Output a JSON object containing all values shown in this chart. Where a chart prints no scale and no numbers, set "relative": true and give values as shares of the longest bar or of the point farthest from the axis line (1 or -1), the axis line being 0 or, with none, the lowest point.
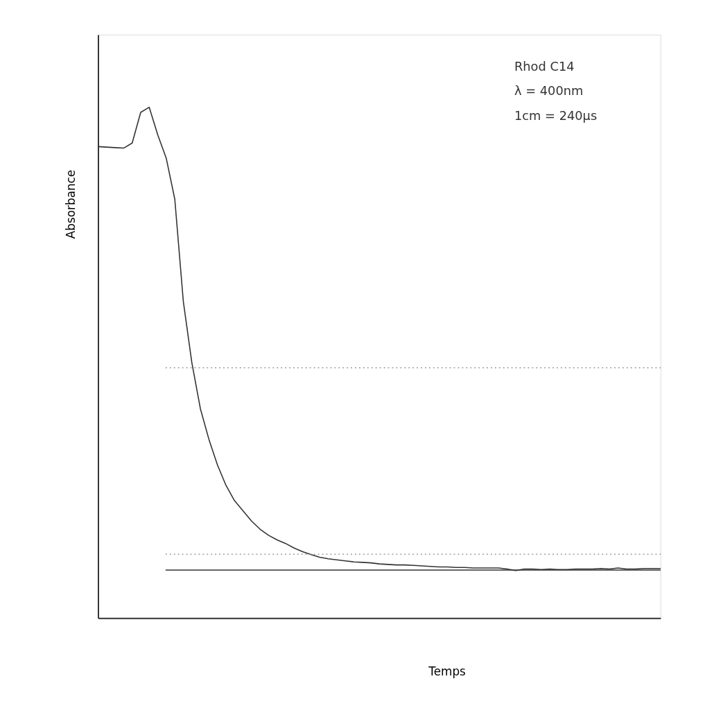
{
  "chart_data": {
    "type": "line",
    "relative": true,
    "xlabel": "Temps",
    "ylabel": "Absorbance",
    "categories": [
      null,
      null,
      null,
      null,
      null,
      null,
      null,
      null,
      null,
      null,
      null,
      null,
      null,
      null,
      null,
      null,
      null,
      null,
      null,
      null,
      null,
      null,
      null,
      null,
      null,
      null,
      null,
      null,
      null,
      null,
      null,
      null,
      null,
      null,
      null,
      null,
      null,
      null,
      null,
      null,
      null,
      null,
      null,
      null,
      null,
      null,
      null,
      null,
      null,
      null,
      null,
      null,
      null,
      null,
      null,
      null,
      null,
      null,
      null,
      null,
      null,
      null,
      null,
      null,
      null,
      null,
      null
    ],
    "series": [
      {
        "color": "#333333",
        "values": [
          0.923,
          0.922,
          0.921,
          0.92,
          0.93,
          0.99,
          1,
          0.946,
          0.9,
          0.82,
          0.62,
          0.5,
          0.41,
          0.35,
          0.3,
          0.26,
          0.23,
          0.21,
          0.19,
          0.174,
          0.162,
          0.153,
          0.146,
          0.137,
          0.13,
          0.124,
          0.119,
          0.116,
          0.114,
          0.112,
          0.11,
          0.109,
          0.108,
          0.106,
          0.105,
          0.104,
          0.104,
          0.103,
          0.102,
          0.101,
          0.1,
          0.1,
          0.099,
          0.099,
          0.098,
          0.098,
          0.098,
          0.098,
          0.096,
          0.093,
          0.096,
          0.096,
          0.095,
          0.096,
          0.095,
          0.095,
          0.096,
          0.096,
          0.096,
          0.097,
          0.096,
          0.098,
          0.096,
          0.096,
          0.097,
          0.097,
          0.097
        ]
      }
    ],
    "ref_lines": [
      {
        "axis": "y",
        "value": 0.094,
        "color": "#333333",
        "line_style": "solid"
      },
      {
        "axis": "y",
        "value": 0.49,
        "color": "#888888",
        "line_style": "dotted"
      },
      {
        "axis": "y",
        "value": 0.125,
        "color": "#888888",
        "line_style": "dotted"
      }
    ],
    "annotations": [
      "Rhod C14",
      "λ = 400nm",
      "1cm = 240µs"
    ],
    "line_style": "solid",
    "marker": "none",
    "grid": false
  }
}
